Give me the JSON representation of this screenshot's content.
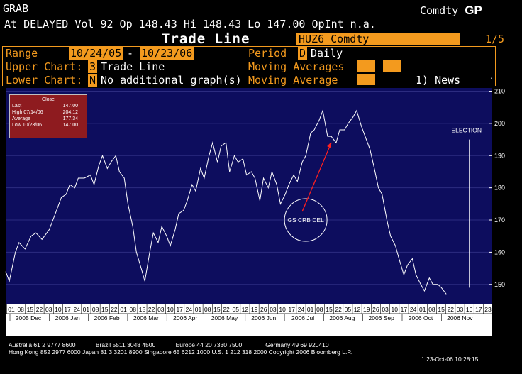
{
  "header": {
    "app": "GRAB",
    "function": "Comdty",
    "function_code": "GP",
    "quote": "At DELAYED Vol 92 Op 148.43 Hi 148.43 Lo 147.00 OpInt n.a.",
    "title": "Trade Line",
    "ticker": "HUZ6 Comdty",
    "page": "1/5"
  },
  "settings": {
    "range_label": "Range",
    "range_from": "10/24/05",
    "range_sep": "-",
    "range_to": "10/23/06",
    "period_label": "Period",
    "period_code": "D",
    "period_value": "Daily",
    "upper_label": "Upper Chart:",
    "upper_code": "3",
    "upper_value": "Trade Line",
    "ma1_label": "Moving Averages",
    "lower_label": "Lower Chart:",
    "lower_code": "N",
    "lower_value": "No additional graph(s)",
    "ma2_label": "Moving Average",
    "news": "1) News"
  },
  "legend": {
    "title": "Close",
    "rows": [
      {
        "k": "Last",
        "v": "147.00"
      },
      {
        "k": "High  07/14/06",
        "v": "204.12"
      },
      {
        "k": "Average",
        "v": "177.34"
      },
      {
        "k": "Low  10/23/06",
        "v": "147.00"
      }
    ]
  },
  "colors": {
    "background": "#000000",
    "plot": "#0d0d5e",
    "accent": "#f39a1e",
    "line": "#ffffff",
    "arrow": "#ff2020",
    "legend_bg": "#8e1b1f"
  },
  "chart_data": {
    "type": "line",
    "title": "",
    "xlabel": "",
    "ylabel": "",
    "ylim": [
      144,
      211
    ],
    "y_ticks": [
      150,
      160,
      170,
      180,
      190,
      200,
      210
    ],
    "day_ticks": [
      "01",
      "08",
      "15",
      "22",
      "03",
      "10",
      "17",
      "24",
      "01",
      "08",
      "15",
      "22",
      "01",
      "08",
      "15",
      "22",
      "03",
      "10",
      "17",
      "24",
      "01",
      "08",
      "15",
      "22",
      "05",
      "12",
      "19",
      "26",
      "03",
      "10",
      "17",
      "24",
      "01",
      "08",
      "15",
      "22",
      "05",
      "12",
      "19",
      "26",
      "03",
      "10",
      "17",
      "24",
      "01",
      "08",
      "15",
      "22",
      "03",
      "10",
      "17",
      "23"
    ],
    "months": [
      "2005 Dec",
      "2006 Jan",
      "2006 Feb",
      "2006 Mar",
      "2006 Apr",
      "2006 May",
      "2006 Jun",
      "2006 Jul",
      "2006 Aug",
      "2006 Sep",
      "2006 Oct",
      "2006 Nov"
    ],
    "x_range": [
      "2005-10-24",
      "2006-11-30"
    ],
    "series": [
      {
        "points": [
          [
            "2005-10-24",
            154
          ],
          [
            "2005-10-27",
            151
          ],
          [
            "2005-11-01",
            160
          ],
          [
            "2005-11-04",
            163
          ],
          [
            "2005-11-09",
            161
          ],
          [
            "2005-11-14",
            165
          ],
          [
            "2005-11-18",
            166
          ],
          [
            "2005-11-23",
            164
          ],
          [
            "2005-11-29",
            167
          ],
          [
            "2005-12-02",
            170
          ],
          [
            "2005-12-06",
            174
          ],
          [
            "2005-12-09",
            177
          ],
          [
            "2005-12-13",
            178
          ],
          [
            "2005-12-16",
            181
          ],
          [
            "2005-12-20",
            180
          ],
          [
            "2005-12-23",
            183
          ],
          [
            "2005-12-28",
            183
          ],
          [
            "2006-01-02",
            184
          ],
          [
            "2006-01-05",
            181
          ],
          [
            "2006-01-09",
            187
          ],
          [
            "2006-01-12",
            190
          ],
          [
            "2006-01-16",
            186
          ],
          [
            "2006-01-19",
            188
          ],
          [
            "2006-01-23",
            190
          ],
          [
            "2006-01-26",
            185
          ],
          [
            "2006-01-30",
            183
          ],
          [
            "2006-02-02",
            175
          ],
          [
            "2006-02-06",
            168
          ],
          [
            "2006-02-09",
            160
          ],
          [
            "2006-02-13",
            155
          ],
          [
            "2006-02-16",
            151
          ],
          [
            "2006-02-20",
            160
          ],
          [
            "2006-02-23",
            166
          ],
          [
            "2006-02-27",
            163
          ],
          [
            "2006-03-02",
            168
          ],
          [
            "2006-03-06",
            165
          ],
          [
            "2006-03-09",
            162
          ],
          [
            "2006-03-13",
            167
          ],
          [
            "2006-03-16",
            172
          ],
          [
            "2006-03-20",
            173
          ],
          [
            "2006-03-23",
            176
          ],
          [
            "2006-03-27",
            181
          ],
          [
            "2006-03-30",
            179
          ],
          [
            "2006-04-03",
            186
          ],
          [
            "2006-04-06",
            183
          ],
          [
            "2006-04-10",
            190
          ],
          [
            "2006-04-13",
            194
          ],
          [
            "2006-04-17",
            188
          ],
          [
            "2006-04-20",
            193
          ],
          [
            "2006-04-24",
            194
          ],
          [
            "2006-04-27",
            185
          ],
          [
            "2006-05-01",
            190
          ],
          [
            "2006-05-04",
            188
          ],
          [
            "2006-05-08",
            189
          ],
          [
            "2006-05-11",
            184
          ],
          [
            "2006-05-15",
            185
          ],
          [
            "2006-05-18",
            183
          ],
          [
            "2006-05-22",
            176
          ],
          [
            "2006-05-25",
            183
          ],
          [
            "2006-05-29",
            180
          ],
          [
            "2006-06-01",
            185
          ],
          [
            "2006-06-05",
            181
          ],
          [
            "2006-06-08",
            175
          ],
          [
            "2006-06-12",
            178
          ],
          [
            "2006-06-15",
            181
          ],
          [
            "2006-06-19",
            184
          ],
          [
            "2006-06-22",
            182
          ],
          [
            "2006-06-26",
            188
          ],
          [
            "2006-06-29",
            190
          ],
          [
            "2006-07-03",
            197
          ],
          [
            "2006-07-06",
            198
          ],
          [
            "2006-07-10",
            201
          ],
          [
            "2006-07-13",
            204
          ],
          [
            "2006-07-17",
            196
          ],
          [
            "2006-07-20",
            196
          ],
          [
            "2006-07-24",
            194
          ],
          [
            "2006-07-27",
            198
          ],
          [
            "2006-07-31",
            198
          ],
          [
            "2006-08-03",
            200
          ],
          [
            "2006-08-07",
            202
          ],
          [
            "2006-08-10",
            204
          ],
          [
            "2006-08-14",
            199
          ],
          [
            "2006-08-17",
            196
          ],
          [
            "2006-08-21",
            192
          ],
          [
            "2006-08-24",
            187
          ],
          [
            "2006-08-28",
            180
          ],
          [
            "2006-08-31",
            178
          ],
          [
            "2006-09-04",
            170
          ],
          [
            "2006-09-07",
            165
          ],
          [
            "2006-09-11",
            162
          ],
          [
            "2006-09-14",
            158
          ],
          [
            "2006-09-18",
            153
          ],
          [
            "2006-09-21",
            156
          ],
          [
            "2006-09-25",
            158
          ],
          [
            "2006-09-28",
            153
          ],
          [
            "2006-10-02",
            150
          ],
          [
            "2006-10-05",
            148
          ],
          [
            "2006-10-09",
            152
          ],
          [
            "2006-10-12",
            150
          ],
          [
            "2006-10-16",
            150
          ],
          [
            "2006-10-19",
            149
          ],
          [
            "2006-10-23",
            147
          ]
        ]
      }
    ],
    "annotations": [
      {
        "text": "GS CRB DEL",
        "x": "2006-07-13",
        "y": 170
      },
      {
        "text": "ELECTION",
        "x": "2006-11-07",
        "y": 197
      }
    ]
  }
}
